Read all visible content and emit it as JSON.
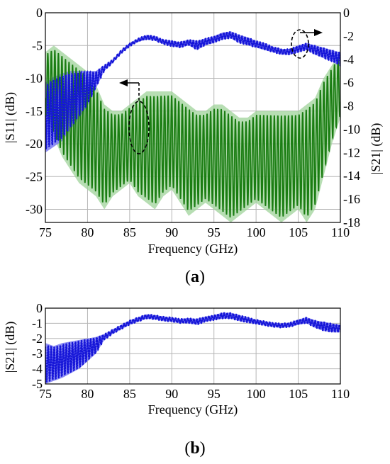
{
  "panel_a": {
    "label_open": "(",
    "label_letter": "a",
    "label_close": ")"
  },
  "panel_b": {
    "label_open": "(",
    "label_letter": "b",
    "label_close": ")"
  },
  "colors": {
    "s11_line": "#1a7d12",
    "s11_band": "#9fd39a",
    "s21_line": "#1515d8",
    "s21_band": "#7d7df2",
    "grid": "#b5b5b5"
  },
  "chart_data": [
    {
      "type": "line",
      "panel": "a",
      "xlabel": "Frequency (GHz)",
      "ylabel_left": "|S11| (dB)",
      "ylabel_right": "|S21| (dB)",
      "xlim": [
        75,
        110
      ],
      "ylim_left": [
        -32,
        0
      ],
      "ylim_right": [
        -18,
        0
      ],
      "x_ticks": [
        "75",
        "80",
        "85",
        "90",
        "95",
        "100",
        "105",
        "110"
      ],
      "y_ticks_left": [
        "0",
        "-5",
        "-10",
        "-15",
        "-20",
        "-25",
        "-30"
      ],
      "y_ticks_right": [
        "0",
        "-2",
        "-4",
        "-6",
        "-8",
        "-10",
        "-12",
        "-14",
        "-16",
        "-18"
      ],
      "grid": true,
      "annotations": [
        {
          "kind": "dashed-ellipse-with-arrow",
          "points_to": "left axis",
          "x": 86,
          "y_left": -15
        },
        {
          "kind": "dashed-ellipse-with-arrow",
          "points_to": "right axis",
          "x": 105,
          "y_right": -3
        }
      ],
      "series": [
        {
          "axis": "left",
          "style": "solid",
          "envelope": [
            {
              "x": 75,
              "upper": -6,
              "lower": -16
            },
            {
              "x": 76,
              "upper": -5,
              "lower": -19
            },
            {
              "x": 77,
              "upper": -6,
              "lower": -22
            },
            {
              "x": 78,
              "upper": -7,
              "lower": -24
            },
            {
              "x": 79,
              "upper": -8,
              "lower": -26
            },
            {
              "x": 80,
              "upper": -9,
              "lower": -27
            },
            {
              "x": 81,
              "upper": -11,
              "lower": -28
            },
            {
              "x": 82,
              "upper": -14,
              "lower": -30
            },
            {
              "x": 83,
              "upper": -15,
              "lower": -28
            },
            {
              "x": 84,
              "upper": -15,
              "lower": -27
            },
            {
              "x": 85,
              "upper": -14,
              "lower": -26
            },
            {
              "x": 86,
              "upper": -13,
              "lower": -28
            },
            {
              "x": 87,
              "upper": -12,
              "lower": -29
            },
            {
              "x": 88,
              "upper": -12,
              "lower": -30
            },
            {
              "x": 89,
              "upper": -12,
              "lower": -28
            },
            {
              "x": 90,
              "upper": -12,
              "lower": -27
            },
            {
              "x": 91,
              "upper": -13,
              "lower": -29
            },
            {
              "x": 92,
              "upper": -14,
              "lower": -31
            },
            {
              "x": 93,
              "upper": -15,
              "lower": -30
            },
            {
              "x": 94,
              "upper": -15,
              "lower": -29
            },
            {
              "x": 95,
              "upper": -14,
              "lower": -30
            },
            {
              "x": 96,
              "upper": -14,
              "lower": -31
            },
            {
              "x": 97,
              "upper": -15,
              "lower": -32
            },
            {
              "x": 98,
              "upper": -16,
              "lower": -31
            },
            {
              "x": 99,
              "upper": -16,
              "lower": -30
            },
            {
              "x": 100,
              "upper": -15,
              "lower": -29
            },
            {
              "x": 101,
              "upper": -15,
              "lower": -30
            },
            {
              "x": 102,
              "upper": -15,
              "lower": -31
            },
            {
              "x": 103,
              "upper": -15,
              "lower": -32
            },
            {
              "x": 104,
              "upper": -15,
              "lower": -31
            },
            {
              "x": 105,
              "upper": -15,
              "lower": -30
            },
            {
              "x": 106,
              "upper": -14,
              "lower": -32
            },
            {
              "x": 107,
              "upper": -13,
              "lower": -30
            },
            {
              "x": 108,
              "upper": -10,
              "lower": -25
            },
            {
              "x": 109,
              "upper": -8,
              "lower": -20
            },
            {
              "x": 110,
              "upper": -6,
              "lower": -16
            }
          ]
        },
        {
          "axis": "right",
          "style": "dotted",
          "envelope": [
            {
              "x": 75,
              "upper": -6,
              "lower": -12
            },
            {
              "x": 76,
              "upper": -5.5,
              "lower": -11.5
            },
            {
              "x": 77,
              "upper": -5.2,
              "lower": -11
            },
            {
              "x": 78,
              "upper": -5,
              "lower": -10
            },
            {
              "x": 79,
              "upper": -5,
              "lower": -9
            },
            {
              "x": 80,
              "upper": -5,
              "lower": -8
            },
            {
              "x": 81,
              "upper": -5,
              "lower": -6.5
            },
            {
              "x": 82,
              "upper": -4.5,
              "lower": -5
            },
            {
              "x": 83,
              "upper": -4,
              "lower": -4.3
            },
            {
              "x": 84,
              "upper": -3.2,
              "lower": -3.5
            },
            {
              "x": 85,
              "upper": -2.6,
              "lower": -2.9
            },
            {
              "x": 86,
              "upper": -2.2,
              "lower": -2.5
            },
            {
              "x": 87,
              "upper": -1.9,
              "lower": -2.3
            },
            {
              "x": 88,
              "upper": -2,
              "lower": -2.4
            },
            {
              "x": 89,
              "upper": -2.3,
              "lower": -2.7
            },
            {
              "x": 90,
              "upper": -2.4,
              "lower": -2.9
            },
            {
              "x": 91,
              "upper": -2.5,
              "lower": -3.0
            },
            {
              "x": 92,
              "upper": -2.3,
              "lower": -2.8
            },
            {
              "x": 93,
              "upper": -2.4,
              "lower": -3.2
            },
            {
              "x": 94,
              "upper": -2.2,
              "lower": -2.8
            },
            {
              "x": 95,
              "upper": -2.0,
              "lower": -2.6
            },
            {
              "x": 96,
              "upper": -1.7,
              "lower": -2.3
            },
            {
              "x": 97,
              "upper": -1.6,
              "lower": -2.2
            },
            {
              "x": 98,
              "upper": -1.9,
              "lower": -2.6
            },
            {
              "x": 99,
              "upper": -2.1,
              "lower": -2.8
            },
            {
              "x": 100,
              "upper": -2.4,
              "lower": -3.0
            },
            {
              "x": 101,
              "upper": -2.6,
              "lower": -3.2
            },
            {
              "x": 102,
              "upper": -2.9,
              "lower": -3.4
            },
            {
              "x": 103,
              "upper": -3.1,
              "lower": -3.6
            },
            {
              "x": 104,
              "upper": -3.1,
              "lower": -3.6
            },
            {
              "x": 105,
              "upper": -2.8,
              "lower": -3.4
            },
            {
              "x": 106,
              "upper": -2.6,
              "lower": -3.2
            },
            {
              "x": 107,
              "upper": -2.8,
              "lower": -3.6
            },
            {
              "x": 108,
              "upper": -3.0,
              "lower": -3.9
            },
            {
              "x": 109,
              "upper": -3.2,
              "lower": -4.2
            },
            {
              "x": 110,
              "upper": -3.4,
              "lower": -4.6
            }
          ]
        }
      ]
    },
    {
      "type": "line",
      "panel": "b",
      "xlabel": "Frequency (GHz)",
      "ylabel": "|S21| (dB)",
      "xlim": [
        75,
        110
      ],
      "ylim": [
        -5,
        0
      ],
      "x_ticks": [
        "75",
        "80",
        "85",
        "90",
        "95",
        "100",
        "105",
        "110"
      ],
      "y_ticks": [
        "0",
        "-1",
        "-2",
        "-3",
        "-4",
        "-5"
      ],
      "grid": true,
      "series": [
        {
          "axis": "left",
          "style": "dotted",
          "envelope": [
            {
              "x": 75,
              "upper": -2.3,
              "lower": -5
            },
            {
              "x": 76,
              "upper": -2.5,
              "lower": -4.8
            },
            {
              "x": 77,
              "upper": -2.3,
              "lower": -4.6
            },
            {
              "x": 78,
              "upper": -2.2,
              "lower": -4.3
            },
            {
              "x": 79,
              "upper": -2.1,
              "lower": -4.0
            },
            {
              "x": 80,
              "upper": -2.0,
              "lower": -3.5
            },
            {
              "x": 81,
              "upper": -1.9,
              "lower": -3.0
            },
            {
              "x": 82,
              "upper": -1.7,
              "lower": -2.1
            },
            {
              "x": 83,
              "upper": -1.4,
              "lower": -1.7
            },
            {
              "x": 84,
              "upper": -1.1,
              "lower": -1.4
            },
            {
              "x": 85,
              "upper": -0.8,
              "lower": -1.1
            },
            {
              "x": 86,
              "upper": -0.6,
              "lower": -0.9
            },
            {
              "x": 87,
              "upper": -0.4,
              "lower": -0.7
            },
            {
              "x": 88,
              "upper": -0.45,
              "lower": -0.75
            },
            {
              "x": 89,
              "upper": -0.55,
              "lower": -0.85
            },
            {
              "x": 90,
              "upper": -0.6,
              "lower": -0.9
            },
            {
              "x": 91,
              "upper": -0.7,
              "lower": -1.0
            },
            {
              "x": 92,
              "upper": -0.65,
              "lower": -1.0
            },
            {
              "x": 93,
              "upper": -0.7,
              "lower": -1.1
            },
            {
              "x": 94,
              "upper": -0.55,
              "lower": -0.9
            },
            {
              "x": 95,
              "upper": -0.45,
              "lower": -0.8
            },
            {
              "x": 96,
              "upper": -0.3,
              "lower": -0.7
            },
            {
              "x": 97,
              "upper": -0.3,
              "lower": -0.7
            },
            {
              "x": 98,
              "upper": -0.45,
              "lower": -0.85
            },
            {
              "x": 99,
              "upper": -0.6,
              "lower": -0.95
            },
            {
              "x": 100,
              "upper": -0.75,
              "lower": -1.05
            },
            {
              "x": 101,
              "upper": -0.85,
              "lower": -1.15
            },
            {
              "x": 102,
              "upper": -0.95,
              "lower": -1.25
            },
            {
              "x": 103,
              "upper": -1.0,
              "lower": -1.3
            },
            {
              "x": 104,
              "upper": -0.95,
              "lower": -1.25
            },
            {
              "x": 105,
              "upper": -0.75,
              "lower": -1.1
            },
            {
              "x": 106,
              "upper": -0.6,
              "lower": -1.0
            },
            {
              "x": 107,
              "upper": -0.8,
              "lower": -1.3
            },
            {
              "x": 108,
              "upper": -0.9,
              "lower": -1.5
            },
            {
              "x": 109,
              "upper": -1.0,
              "lower": -1.6
            },
            {
              "x": 110,
              "upper": -1.1,
              "lower": -1.6
            }
          ]
        }
      ]
    }
  ]
}
